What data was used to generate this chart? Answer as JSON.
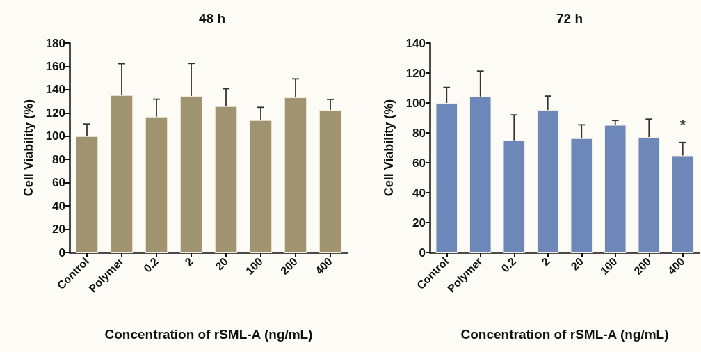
{
  "chart_data": [
    {
      "type": "bar",
      "title": "48 h",
      "xlabel": "Concentration of rSML-A (ng/mL)",
      "ylabel": "Cell Viability (%)",
      "categories": [
        "Control",
        "Polymer",
        "0.2",
        "2",
        "20",
        "100",
        "200",
        "400"
      ],
      "values": [
        100,
        135.3,
        116.8,
        134.5,
        125.8,
        113.8,
        133.3,
        122.6
      ],
      "errors": [
        10.5,
        27,
        15,
        28,
        15,
        11,
        16,
        9
      ],
      "color": "#a09470",
      "ylim": [
        0,
        180
      ],
      "yticks": [
        0,
        20,
        40,
        60,
        80,
        100,
        120,
        140,
        160,
        180
      ],
      "grid": false
    },
    {
      "type": "bar",
      "title": "72 h",
      "xlabel": "Concentration of rSML-A (ng/mL)",
      "ylabel": "Cell Viability (%)",
      "categories": [
        "Control",
        "Polymer",
        "0.2",
        "2",
        "20",
        "100",
        "200",
        "400"
      ],
      "values": [
        100,
        104.3,
        75,
        95.3,
        76.4,
        85.3,
        77.2,
        64.9
      ],
      "errors": [
        10.4,
        17,
        17,
        9.3,
        9,
        3,
        12,
        8.7
      ],
      "color": "#6c87b8",
      "ylim": [
        0,
        140
      ],
      "yticks": [
        0,
        20,
        40,
        60,
        80,
        100,
        120,
        140
      ],
      "grid": false,
      "annotations": [
        "*"
      ]
    }
  ]
}
